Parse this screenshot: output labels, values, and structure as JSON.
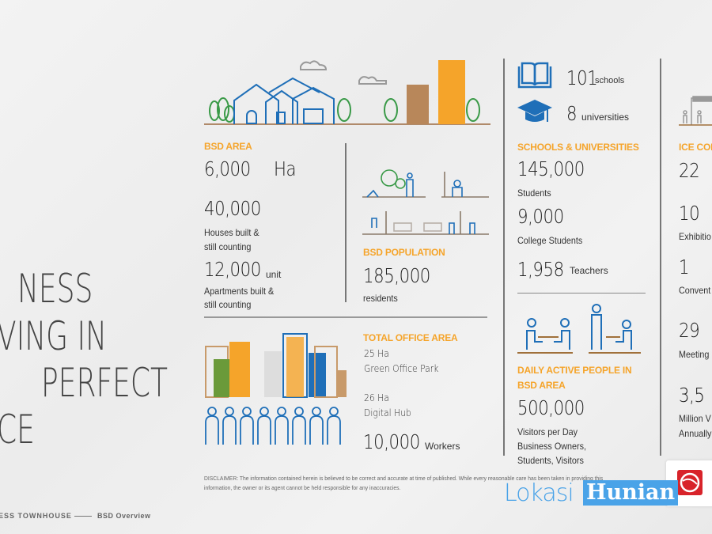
{
  "title_lines": [
    "NESS",
    "VING IN",
    "PERFECT",
    "CE"
  ],
  "footer": {
    "left": "ESS TOWNHOUSE",
    "right": "BSD Overview"
  },
  "bsd_area": {
    "label": "BSD AREA",
    "area_value": "6,000",
    "area_unit": "Ha",
    "houses_value": "40,000",
    "houses_desc": [
      "Houses built &",
      "still counting"
    ],
    "apartments_value": "12,000",
    "apartments_unit": "unit",
    "apartments_desc": [
      "Apartments built &",
      "still counting"
    ]
  },
  "population": {
    "label": "BSD POPULATION",
    "value": "185,000",
    "desc": "residents"
  },
  "office": {
    "label": "TOTAL OFFICE AREA",
    "item1_value": "25 Ha",
    "item1_name": "Green Office Park",
    "item2_value": "26 Ha",
    "item2_name": "Digital Hub",
    "workers_value": "10,000",
    "workers_unit": "Workers"
  },
  "schools": {
    "schools_count": "101",
    "schools_unit": "schools",
    "universities_count": "8",
    "universities_unit": "universities",
    "label": "SCHOOLS & UNIVERSITIES",
    "students_value": "145,000",
    "students_desc": "Students",
    "college_value": "9,000",
    "college_desc": "College Students",
    "teachers_value": "1,958",
    "teachers_desc": "Teachers"
  },
  "daily": {
    "label": [
      "DAILY ACTIVE PEOPLE  IN",
      "BSD AREA"
    ],
    "value": "500,000",
    "desc": [
      "Visitors per Day",
      "Business Owners,",
      "Students, Visitors"
    ]
  },
  "ice": {
    "label": "ICE CON",
    "items": [
      {
        "value": "22",
        "desc": ""
      },
      {
        "value": "10",
        "desc": "Exhibitio"
      },
      {
        "value": "1",
        "desc": "Convent"
      },
      {
        "value": "29",
        "desc": "Meeting"
      },
      {
        "value": "3,5",
        "desc": "Million V",
        "desc2": "Annually"
      }
    ]
  },
  "disclaimer": [
    "DISCLAIMER: The information contained herein is believed to be correct and accurate at time of published. While every reasonable care has been taken in providing this",
    "information, the owner or  its agent cannot be held responsible for any inaccuracies."
  ],
  "watermark": {
    "part1": "Lokasi",
    "part2": "Hunian"
  },
  "colors": {
    "orange": "#f5a42a",
    "blue": "#1f6fb8",
    "green": "#3a9a48",
    "brown": "#b8875a"
  }
}
